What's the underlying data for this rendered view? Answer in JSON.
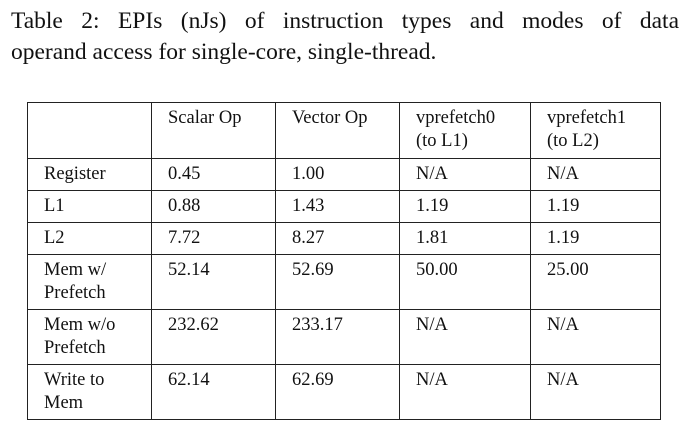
{
  "caption": {
    "line1": "Table 2: EPIs (nJs) of instruction types and modes of data",
    "line2": "operand access for single-core, single-thread."
  },
  "table": {
    "header": [
      "",
      "Scalar Op",
      "Vector Op",
      "vprefetch0 (to L1)",
      "vprefetch1 (to L2)"
    ],
    "header_lines": {
      "c3_line1": "vprefetch0",
      "c3_line2": "(to L1)",
      "c4_line1": "vprefetch1",
      "c4_line2": "(to L2)"
    },
    "rows": [
      {
        "label": "Register",
        "label_line1": "Register",
        "label_line2": "",
        "values": [
          "0.45",
          "1.00",
          "N/A",
          "N/A"
        ]
      },
      {
        "label": "L1",
        "label_line1": "L1",
        "label_line2": "",
        "values": [
          "0.88",
          "1.43",
          "1.19",
          "1.19"
        ]
      },
      {
        "label": "L2",
        "label_line1": "L2",
        "label_line2": "",
        "values": [
          "7.72",
          "8.27",
          "1.81",
          "1.19"
        ]
      },
      {
        "label": "Mem w/ Prefetch",
        "label_line1": "Mem w/",
        "label_line2": "Prefetch",
        "values": [
          "52.14",
          "52.69",
          "50.00",
          "25.00"
        ]
      },
      {
        "label": "Mem w/o Prefetch",
        "label_line1": "Mem w/o",
        "label_line2": "Prefetch",
        "values": [
          "232.62",
          "233.17",
          "N/A",
          "N/A"
        ]
      },
      {
        "label": "Write to Mem",
        "label_line1": "Write to",
        "label_line2": "Mem",
        "values": [
          "62.14",
          "62.69",
          "N/A",
          "N/A"
        ]
      }
    ]
  }
}
